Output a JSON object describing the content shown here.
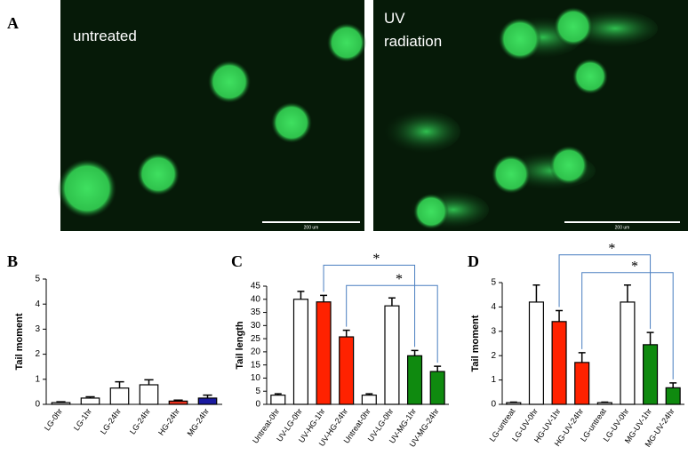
{
  "panel_a": {
    "label": "A",
    "images": [
      {
        "caption": "untreated",
        "scale_bar": "200 um"
      },
      {
        "caption_lines": [
          "UV",
          "radiation"
        ],
        "scale_bar": "200 um"
      }
    ]
  },
  "chart_data": [
    {
      "type": "bar",
      "panel_label": "B",
      "y_label": "Tail moment",
      "categories": [
        "LG-0hr",
        "LG-1hr",
        "LG-24hr",
        "LG-24hr",
        "HG-24hr",
        "MG-24hr"
      ],
      "values": [
        0.07,
        0.25,
        0.65,
        0.78,
        0.13,
        0.25
      ],
      "errors": [
        0.03,
        0.05,
        0.25,
        0.2,
        0.04,
        0.12
      ],
      "colors": [
        "#ffffff",
        "#ffffff",
        "#ffffff",
        "#ffffff",
        "#e8321e",
        "#1a1aa0"
      ],
      "ylim": [
        0,
        5
      ],
      "yticks": [
        0,
        1,
        2,
        3,
        4,
        5
      ]
    },
    {
      "type": "bar",
      "panel_label": "C",
      "y_label": "Tail length",
      "categories": [
        "Untreat-0hr",
        "UV-LG-0hr",
        "UV-HG-1hr",
        "UV-HG-24hr",
        "Untreat-0hr",
        "UV-LG-0hr",
        "UV-MG-1hr",
        "UV-MG-24hr"
      ],
      "values": [
        3.5,
        40,
        39,
        25.7,
        3.5,
        37.5,
        18.5,
        12.5
      ],
      "errors": [
        0.5,
        3,
        2.5,
        2.5,
        0.5,
        3,
        2,
        2
      ],
      "colors": [
        "#ffffff",
        "#ffffff",
        "#ff2200",
        "#ff2200",
        "#ffffff",
        "#ffffff",
        "#0f8a0f",
        "#0f8a0f"
      ],
      "ylim": [
        0,
        45
      ],
      "yticks": [
        0,
        5,
        10,
        15,
        20,
        25,
        30,
        35,
        40,
        45
      ],
      "annotations": [
        {
          "text": "*",
          "between": [
            2,
            6
          ]
        },
        {
          "text": "*",
          "between": [
            3,
            7
          ]
        }
      ]
    },
    {
      "type": "bar",
      "panel_label": "D",
      "y_label": "Tail moment",
      "categories": [
        "LG-untreat",
        "LG-UV-0hr",
        "HG-UV-1hr",
        "HG-UV-24hr",
        "LG-untreat",
        "LG-UV-0hr",
        "MG-UV-1hr",
        "MG-UV-24hr"
      ],
      "values": [
        0.07,
        4.2,
        3.4,
        1.72,
        0.07,
        4.2,
        2.45,
        0.68
      ],
      "errors": [
        0.02,
        0.7,
        0.45,
        0.4,
        0.02,
        0.7,
        0.5,
        0.2
      ],
      "colors": [
        "#ffffff",
        "#ffffff",
        "#ff2200",
        "#ff2200",
        "#ffffff",
        "#ffffff",
        "#0f8a0f",
        "#0f8a0f"
      ],
      "ylim": [
        0,
        5
      ],
      "yticks": [
        0,
        1,
        2,
        3,
        4,
        5
      ],
      "annotations": [
        {
          "text": "*",
          "between": [
            2,
            6
          ]
        },
        {
          "text": "*",
          "between": [
            3,
            7
          ]
        }
      ]
    }
  ]
}
